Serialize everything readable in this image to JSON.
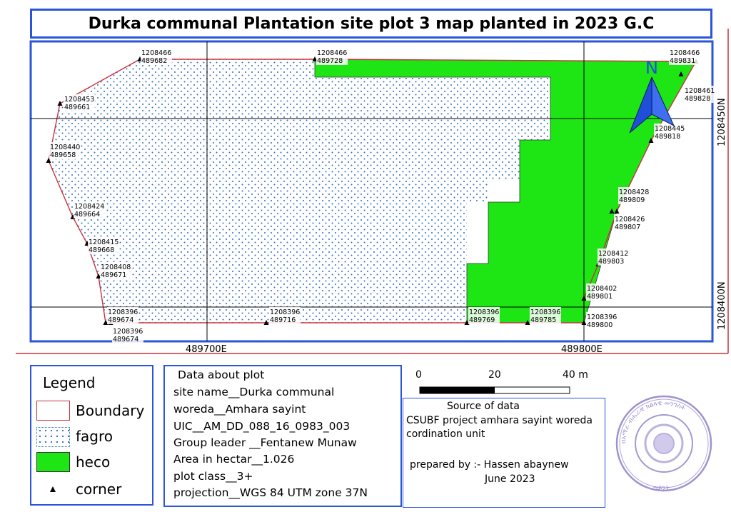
{
  "title": "Durka communal Plantation site plot 3 map planted in 2023 G.C",
  "map": {
    "grid_labels": {
      "x1": "489700E",
      "x2": "489800E",
      "y1": "1208450N",
      "y2": "1208400N"
    },
    "north_arrow": "N",
    "corners": [
      {
        "n": "1208466",
        "e": "489682"
      },
      {
        "n": "1208466",
        "e": "489728"
      },
      {
        "n": "1208466",
        "e": "489831"
      },
      {
        "n": "1208453",
        "e": "489661"
      },
      {
        "n": "1208461",
        "e": "489828"
      },
      {
        "n": "1208445",
        "e": "489818"
      },
      {
        "n": "1208440",
        "e": "489658"
      },
      {
        "n": "1208428",
        "e": "489809"
      },
      {
        "n": "1208424",
        "e": "489664"
      },
      {
        "n": "1208426",
        "e": "489807"
      },
      {
        "n": "1208415",
        "e": "489668"
      },
      {
        "n": "1208412",
        "e": "489803"
      },
      {
        "n": "1208408",
        "e": "489671"
      },
      {
        "n": "1208402",
        "e": "489801"
      },
      {
        "n": "1208396",
        "e": "489674"
      },
      {
        "n": "1208396",
        "e": "489674"
      },
      {
        "n": "1208396",
        "e": "489716"
      },
      {
        "n": "1208396",
        "e": "489769"
      },
      {
        "n": "1208396",
        "e": "489785"
      },
      {
        "n": "1208396",
        "e": "489800"
      }
    ]
  },
  "legend": {
    "title": "Legend",
    "items": [
      {
        "label": "Boundary",
        "color": "#c8323c"
      },
      {
        "label": "fagro",
        "color": "#2b6cc4"
      },
      {
        "label": "heco",
        "color": "#1ee614"
      },
      {
        "label": "corner",
        "color": "#000000"
      }
    ]
  },
  "plot_data": {
    "heading": "Data about plot",
    "lines": [
      "site name__Durka communal",
      "woreda__Amhara sayint",
      "UIC__AM_DD_088_16_0983_003",
      "Group leader __Fentanew Munaw",
      "Area in hectar__1.026",
      "plot class__3+",
      "projection__WGS 84 UTM zone 37N"
    ]
  },
  "scale_bar": {
    "labels": [
      "0",
      "20",
      "40 m"
    ]
  },
  "source": {
    "heading": "Source of data",
    "line1": "CSUBF project amhara sayint woreda",
    "line2": "cordination unit",
    "prepared": "prepared by :- Hassen abaynew",
    "date": "June 2023"
  },
  "stamp": {
    "text": "በአማራ ብሔራዊ ክልላዊ መንግስት",
    "inner": "ሣይንት"
  },
  "colors": {
    "frame_blue": "#2a55d9",
    "boundary_red": "#c8323c",
    "heco_green": "#1ee614",
    "fagro_dot": "#2b6cc4",
    "north_arrow": "#1f4fd9",
    "stamp_purple": "#8f7fc6"
  }
}
